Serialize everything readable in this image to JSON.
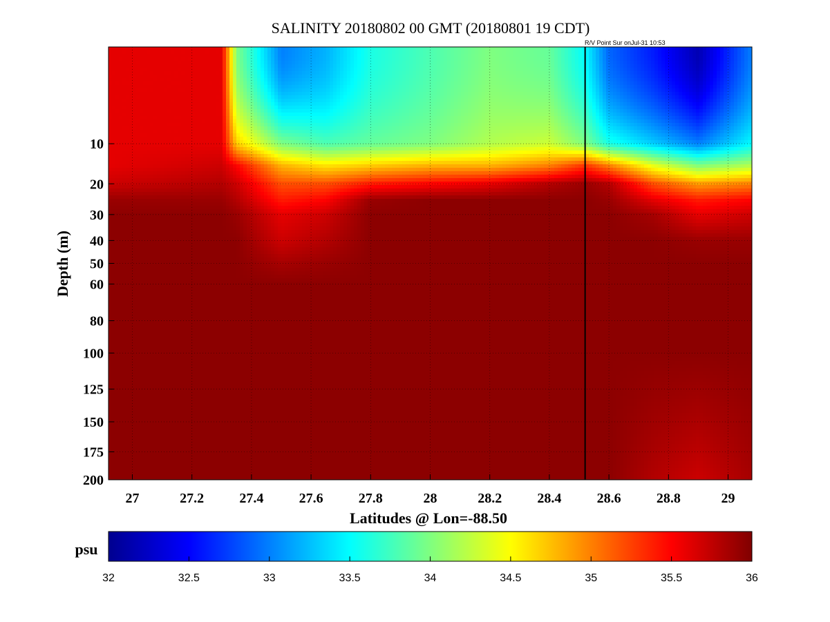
{
  "chart_data": {
    "type": "heatmap",
    "title": "SALINITY 20180802 00 GMT (20180801 19 CDT)",
    "annotation": "R/V Point Sur onJul-31 10:53",
    "xlabel": "Latitudes @ Lon=-88.50",
    "ylabel": "Depth (m)",
    "x_ticks": [
      27,
      27.2,
      27.4,
      27.6,
      27.8,
      28,
      28.2,
      28.4,
      28.6,
      28.8,
      29
    ],
    "x_tick_labels": [
      "27",
      "27.2",
      "27.4",
      "27.6",
      "27.8",
      "28",
      "28.2",
      "28.4",
      "28.6",
      "28.8",
      "29"
    ],
    "y_ticks": [
      10,
      20,
      30,
      40,
      50,
      60,
      80,
      100,
      125,
      150,
      175,
      200
    ],
    "y_tick_labels": [
      "10",
      "20",
      "30",
      "40",
      "50",
      "60",
      "80",
      "100",
      "125",
      "150",
      "175",
      "200"
    ],
    "xlim": [
      26.92,
      29.08
    ],
    "ylim": [
      0,
      200
    ],
    "y_scale": "sqrt",
    "y_reversed": true,
    "grid": true,
    "vertical_marker_lat": 28.52,
    "colorbar": {
      "label": "psu",
      "range": [
        32,
        36
      ],
      "colormap": "jet",
      "ticks": [
        32,
        32.5,
        33,
        33.5,
        34,
        34.5,
        35,
        35.5,
        36
      ],
      "tick_labels": [
        "32",
        "32.5",
        "33",
        "33.5",
        "34",
        "34.5",
        "35",
        "35.5",
        "36"
      ]
    },
    "approx_field": {
      "lat": [
        26.92,
        27.3,
        27.35,
        27.5,
        27.65,
        27.8,
        28.0,
        28.2,
        28.4,
        28.52,
        28.6,
        28.75,
        28.9,
        29.08
      ],
      "depth": [
        0,
        10,
        15,
        20,
        25,
        30,
        40,
        50,
        60,
        100,
        200
      ],
      "salinity": [
        [
          35.6,
          35.6,
          34.0,
          33.0,
          33.2,
          33.6,
          33.8,
          34.0,
          33.9,
          33.5,
          32.9,
          32.6,
          32.2,
          33.0
        ],
        [
          35.6,
          35.6,
          34.7,
          34.0,
          33.8,
          33.9,
          34.0,
          34.2,
          34.3,
          34.0,
          33.6,
          33.3,
          33.0,
          33.5
        ],
        [
          35.6,
          35.7,
          35.5,
          34.8,
          34.6,
          34.7,
          34.8,
          34.8,
          35.0,
          35.3,
          35.0,
          34.4,
          34.0,
          34.2
        ],
        [
          35.7,
          35.8,
          35.7,
          35.2,
          35.2,
          35.4,
          35.5,
          35.6,
          35.8,
          35.9,
          35.8,
          35.2,
          34.9,
          35.0
        ],
        [
          35.9,
          35.9,
          35.8,
          35.4,
          35.5,
          35.9,
          35.95,
          35.95,
          35.95,
          35.95,
          35.9,
          35.6,
          35.4,
          35.5
        ],
        [
          35.95,
          35.95,
          35.9,
          35.6,
          35.7,
          35.95,
          35.95,
          35.95,
          35.95,
          35.95,
          35.95,
          35.85,
          35.6,
          35.7
        ],
        [
          35.95,
          35.95,
          35.95,
          35.7,
          35.8,
          35.95,
          35.95,
          35.95,
          35.95,
          35.95,
          35.95,
          35.95,
          35.9,
          35.9
        ],
        [
          35.95,
          35.95,
          35.95,
          35.85,
          35.9,
          35.95,
          35.95,
          35.95,
          35.95,
          35.95,
          35.95,
          35.95,
          35.95,
          35.95
        ],
        [
          35.95,
          35.95,
          35.95,
          35.95,
          35.95,
          35.95,
          35.95,
          35.95,
          35.95,
          35.95,
          35.95,
          35.95,
          35.95,
          35.95
        ],
        [
          35.95,
          35.95,
          35.95,
          35.95,
          35.95,
          35.95,
          35.95,
          35.95,
          35.95,
          35.95,
          35.95,
          35.95,
          35.95,
          35.95
        ],
        [
          35.95,
          35.95,
          35.95,
          35.95,
          35.95,
          35.95,
          35.95,
          35.95,
          35.95,
          35.95,
          35.95,
          35.8,
          35.7,
          35.85
        ]
      ]
    }
  }
}
